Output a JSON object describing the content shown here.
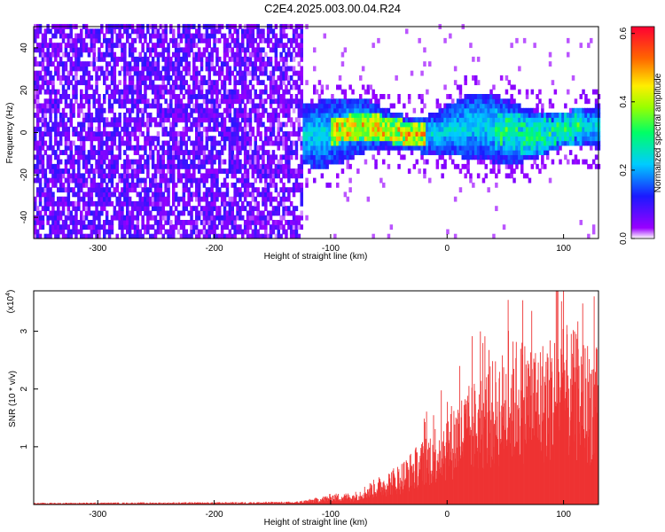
{
  "title": "C2E4.2025.003.00.04.R24",
  "chart_data": [
    {
      "type": "heatmap",
      "xlabel": "Height of straight line (km)",
      "ylabel": "Frequency (Hz)",
      "xlim": [
        -355,
        130
      ],
      "ylim": [
        -50,
        50
      ],
      "xticks": [
        -300,
        -200,
        -100,
        0,
        100
      ],
      "yticks": [
        -40,
        -20,
        0,
        20,
        40
      ],
      "colorbar": {
        "label": "Normalized spectral amplitude",
        "range": [
          0.0,
          0.62
        ],
        "ticks": [
          "0.0",
          "0.2",
          "0.4",
          "0.6"
        ],
        "tick_values": [
          0.0,
          0.2,
          0.4,
          0.6
        ]
      },
      "regions": [
        {
          "x_range": [
            -355,
            -125
          ],
          "y_range": [
            -50,
            50
          ],
          "amplitude": 0.08,
          "pattern": "broadband noise"
        },
        {
          "x_range": [
            -160,
            130
          ],
          "y_range": [
            -15,
            15
          ],
          "amplitude": 0.25,
          "pattern": "narrowband signal"
        },
        {
          "x_range": [
            -100,
            -20
          ],
          "y_range": [
            -5,
            6
          ],
          "amplitude": 0.45,
          "pattern": "peak"
        },
        {
          "x_range": [
            40,
            110
          ],
          "y_range": [
            -10,
            10
          ],
          "amplitude": 0.3,
          "pattern": "strong"
        }
      ]
    },
    {
      "type": "area",
      "xlabel": "Height of straight line (km)",
      "ylabel": "SNR (10 * v/v)",
      "scale_label": "(x10",
      "scale_exp": "4",
      "scale_close": ")",
      "xlim": [
        -355,
        130
      ],
      "ylim": [
        0,
        3.7
      ],
      "xticks": [
        -300,
        -200,
        -100,
        0,
        100
      ],
      "yticks": [
        1,
        2,
        3
      ],
      "envelope": [
        {
          "x": -355,
          "y": 0.03
        },
        {
          "x": -200,
          "y": 0.04
        },
        {
          "x": -130,
          "y": 0.05
        },
        {
          "x": -110,
          "y": 0.12
        },
        {
          "x": -100,
          "y": 0.18
        },
        {
          "x": -80,
          "y": 0.2
        },
        {
          "x": -60,
          "y": 0.45
        },
        {
          "x": -40,
          "y": 0.7
        },
        {
          "x": -20,
          "y": 1.1
        },
        {
          "x": 0,
          "y": 1.6
        },
        {
          "x": 20,
          "y": 2.0
        },
        {
          "x": 40,
          "y": 2.4
        },
        {
          "x": 60,
          "y": 2.8
        },
        {
          "x": 80,
          "y": 2.7
        },
        {
          "x": 100,
          "y": 3.0
        },
        {
          "x": 130,
          "y": 2.6
        }
      ],
      "peak": {
        "x": 95,
        "y": 3.7
      },
      "color": "#ee3333"
    }
  ]
}
